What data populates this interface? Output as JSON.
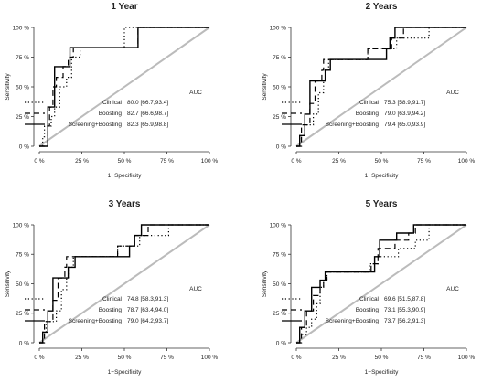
{
  "chart_data": [
    {
      "type": "line",
      "title": "1 Year",
      "xlabel": "1−Specificity",
      "ylabel": "Sensitivity",
      "xlim": [
        0,
        100
      ],
      "ylim": [
        0,
        100
      ],
      "x_ticks": [
        "0 %",
        "25 %",
        "50 %",
        "75 %",
        "100 %"
      ],
      "y_ticks": [
        "0 %",
        "25 %",
        "50 %",
        "75 %",
        "100 %"
      ],
      "legend_position": "bottom-right",
      "auc_header": "AUC",
      "reference_line": {
        "from": [
          0,
          0
        ],
        "to": [
          100,
          100
        ],
        "color": "#bbbbbb"
      },
      "series": [
        {
          "name": "Clinical",
          "auc": "80.0 [66.7,93.4]",
          "style": "dotted",
          "points": [
            [
              0,
              0
            ],
            [
              2,
              0
            ],
            [
              2,
              8
            ],
            [
              3,
              8
            ],
            [
              3,
              17
            ],
            [
              7,
              17
            ],
            [
              7,
              25
            ],
            [
              9,
              25
            ],
            [
              9,
              33
            ],
            [
              12,
              33
            ],
            [
              12,
              50
            ],
            [
              16,
              50
            ],
            [
              16,
              58
            ],
            [
              19,
              58
            ],
            [
              19,
              75
            ],
            [
              24,
              75
            ],
            [
              24,
              83
            ],
            [
              50,
              83
            ],
            [
              50,
              100
            ],
            [
              100,
              100
            ]
          ]
        },
        {
          "name": "Boosting",
          "auc": "82.7 [66.6,98.7]",
          "style": "dashed",
          "points": [
            [
              0,
              0
            ],
            [
              5,
              0
            ],
            [
              5,
              17
            ],
            [
              6,
              17
            ],
            [
              6,
              33
            ],
            [
              8,
              33
            ],
            [
              8,
              50
            ],
            [
              10,
              50
            ],
            [
              10,
              58
            ],
            [
              14,
              58
            ],
            [
              14,
              67
            ],
            [
              17,
              67
            ],
            [
              17,
              75
            ],
            [
              20,
              75
            ],
            [
              20,
              83
            ],
            [
              58,
              83
            ],
            [
              58,
              100
            ],
            [
              100,
              100
            ]
          ]
        },
        {
          "name": "Screening+Boosting",
          "auc": "82.3 [65.9,98.8]",
          "style": "solid",
          "points": [
            [
              0,
              0
            ],
            [
              5,
              0
            ],
            [
              5,
              33
            ],
            [
              9,
              33
            ],
            [
              9,
              67
            ],
            [
              18,
              67
            ],
            [
              18,
              83
            ],
            [
              58,
              83
            ],
            [
              58,
              100
            ],
            [
              100,
              100
            ]
          ]
        }
      ]
    },
    {
      "type": "line",
      "title": "2 Years",
      "xlabel": "1−Specificity",
      "ylabel": "Sensitivity",
      "xlim": [
        0,
        100
      ],
      "ylim": [
        0,
        100
      ],
      "x_ticks": [
        "0 %",
        "25 %",
        "50 %",
        "75 %",
        "100 %"
      ],
      "y_ticks": [
        "0 %",
        "25 %",
        "50 %",
        "75 %",
        "100 %"
      ],
      "legend_position": "bottom-right",
      "auc_header": "AUC",
      "reference_line": {
        "from": [
          0,
          0
        ],
        "to": [
          100,
          100
        ],
        "color": "#bbbbbb"
      },
      "series": [
        {
          "name": "Clinical",
          "auc": "75.3 [58.9,91.7]",
          "style": "dotted",
          "points": [
            [
              0,
              0
            ],
            [
              2,
              0
            ],
            [
              2,
              9
            ],
            [
              5,
              9
            ],
            [
              5,
              18
            ],
            [
              10,
              18
            ],
            [
              10,
              27
            ],
            [
              13,
              27
            ],
            [
              13,
              45
            ],
            [
              16,
              45
            ],
            [
              16,
              55
            ],
            [
              17,
              55
            ],
            [
              17,
              64
            ],
            [
              19,
              64
            ],
            [
              19,
              73
            ],
            [
              42,
              73
            ],
            [
              42,
              82
            ],
            [
              59,
              82
            ],
            [
              59,
              91
            ],
            [
              78,
              91
            ],
            [
              78,
              100
            ],
            [
              100,
              100
            ]
          ]
        },
        {
          "name": "Boosting",
          "auc": "79.0 [63.9,94.2]",
          "style": "dashed",
          "points": [
            [
              0,
              0
            ],
            [
              3,
              0
            ],
            [
              3,
              18
            ],
            [
              8,
              18
            ],
            [
              8,
              36
            ],
            [
              11,
              36
            ],
            [
              11,
              55
            ],
            [
              15,
              55
            ],
            [
              15,
              64
            ],
            [
              16,
              64
            ],
            [
              16,
              73
            ],
            [
              42,
              73
            ],
            [
              42,
              82
            ],
            [
              56,
              82
            ],
            [
              56,
              91
            ],
            [
              63,
              91
            ],
            [
              63,
              100
            ],
            [
              100,
              100
            ]
          ]
        },
        {
          "name": "Screening+Boosting",
          "auc": "79.4 [65.0,93.9]",
          "style": "solid",
          "points": [
            [
              0,
              0
            ],
            [
              2,
              0
            ],
            [
              2,
              9
            ],
            [
              5,
              9
            ],
            [
              5,
              27
            ],
            [
              8,
              27
            ],
            [
              8,
              55
            ],
            [
              17,
              55
            ],
            [
              17,
              64
            ],
            [
              20,
              64
            ],
            [
              20,
              73
            ],
            [
              53,
              73
            ],
            [
              53,
              82
            ],
            [
              55,
              82
            ],
            [
              55,
              91
            ],
            [
              58,
              91
            ],
            [
              58,
              100
            ],
            [
              100,
              100
            ]
          ]
        }
      ]
    },
    {
      "type": "line",
      "title": "3 Years",
      "xlabel": "1−Specificity",
      "ylabel": "Sensitivity",
      "xlim": [
        0,
        100
      ],
      "ylim": [
        0,
        100
      ],
      "x_ticks": [
        "0 %",
        "25 %",
        "50 %",
        "75 %",
        "100 %"
      ],
      "y_ticks": [
        "0 %",
        "25 %",
        "50 %",
        "75 %",
        "100 %"
      ],
      "legend_position": "bottom-right",
      "auc_header": "AUC",
      "reference_line": {
        "from": [
          0,
          0
        ],
        "to": [
          100,
          100
        ],
        "color": "#bbbbbb"
      },
      "series": [
        {
          "name": "Clinical",
          "auc": "74.8 [58.3,91.3]",
          "style": "dotted",
          "points": [
            [
              0,
              0
            ],
            [
              2,
              0
            ],
            [
              2,
              9
            ],
            [
              4,
              9
            ],
            [
              4,
              18
            ],
            [
              10,
              18
            ],
            [
              10,
              27
            ],
            [
              13,
              27
            ],
            [
              13,
              45
            ],
            [
              16,
              45
            ],
            [
              16,
              55
            ],
            [
              17,
              55
            ],
            [
              17,
              64
            ],
            [
              20,
              64
            ],
            [
              20,
              73
            ],
            [
              46,
              73
            ],
            [
              46,
              82
            ],
            [
              59,
              82
            ],
            [
              59,
              91
            ],
            [
              76,
              91
            ],
            [
              76,
              100
            ],
            [
              100,
              100
            ]
          ]
        },
        {
          "name": "Boosting",
          "auc": "78.7 [63.4,94.0]",
          "style": "dashed",
          "points": [
            [
              0,
              0
            ],
            [
              3,
              0
            ],
            [
              3,
              18
            ],
            [
              8,
              18
            ],
            [
              8,
              36
            ],
            [
              11,
              36
            ],
            [
              11,
              55
            ],
            [
              15,
              55
            ],
            [
              15,
              64
            ],
            [
              16,
              64
            ],
            [
              16,
              73
            ],
            [
              46,
              73
            ],
            [
              46,
              82
            ],
            [
              56,
              82
            ],
            [
              56,
              91
            ],
            [
              64,
              91
            ],
            [
              64,
              100
            ],
            [
              100,
              100
            ]
          ]
        },
        {
          "name": "Screening+Boosting",
          "auc": "79.0 [64.2,93.7]",
          "style": "solid",
          "points": [
            [
              0,
              0
            ],
            [
              2,
              0
            ],
            [
              2,
              9
            ],
            [
              5,
              9
            ],
            [
              5,
              27
            ],
            [
              8,
              27
            ],
            [
              8,
              55
            ],
            [
              17,
              55
            ],
            [
              17,
              64
            ],
            [
              21,
              64
            ],
            [
              21,
              73
            ],
            [
              53,
              73
            ],
            [
              53,
              82
            ],
            [
              56,
              82
            ],
            [
              56,
              91
            ],
            [
              60,
              91
            ],
            [
              60,
              100
            ],
            [
              100,
              100
            ]
          ]
        }
      ]
    },
    {
      "type": "line",
      "title": "5 Years",
      "xlabel": "1−Specificity",
      "ylabel": "Sensitivity",
      "xlim": [
        0,
        100
      ],
      "ylim": [
        0,
        100
      ],
      "x_ticks": [
        "0 %",
        "25 %",
        "50 %",
        "75 %",
        "100 %"
      ],
      "y_ticks": [
        "0 %",
        "25 %",
        "50 %",
        "75 %",
        "100 %"
      ],
      "legend_position": "bottom-right",
      "auc_header": "AUC",
      "reference_line": {
        "from": [
          0,
          0
        ],
        "to": [
          100,
          100
        ],
        "color": "#bbbbbb"
      },
      "series": [
        {
          "name": "Clinical",
          "auc": "69.6 [51.5,87.8]",
          "style": "dotted",
          "points": [
            [
              0,
              0
            ],
            [
              2,
              0
            ],
            [
              2,
              7
            ],
            [
              6,
              7
            ],
            [
              6,
              13
            ],
            [
              9,
              13
            ],
            [
              9,
              20
            ],
            [
              12,
              20
            ],
            [
              12,
              33
            ],
            [
              14,
              33
            ],
            [
              14,
              47
            ],
            [
              16,
              47
            ],
            [
              16,
              53
            ],
            [
              18,
              53
            ],
            [
              18,
              60
            ],
            [
              43,
              60
            ],
            [
              43,
              67
            ],
            [
              48,
              67
            ],
            [
              48,
              73
            ],
            [
              60,
              73
            ],
            [
              60,
              80
            ],
            [
              70,
              80
            ],
            [
              70,
              87
            ],
            [
              78,
              87
            ],
            [
              78,
              100
            ],
            [
              100,
              100
            ]
          ]
        },
        {
          "name": "Boosting",
          "auc": "73.1 [55.3,90.9]",
          "style": "dashed",
          "points": [
            [
              0,
              0
            ],
            [
              3,
              0
            ],
            [
              3,
              13
            ],
            [
              6,
              13
            ],
            [
              6,
              27
            ],
            [
              10,
              27
            ],
            [
              10,
              40
            ],
            [
              14,
              40
            ],
            [
              14,
              47
            ],
            [
              16,
              47
            ],
            [
              16,
              53
            ],
            [
              18,
              53
            ],
            [
              18,
              60
            ],
            [
              44,
              60
            ],
            [
              44,
              67
            ],
            [
              48,
              67
            ],
            [
              48,
              80
            ],
            [
              58,
              80
            ],
            [
              58,
              87
            ],
            [
              66,
              87
            ],
            [
              66,
              93
            ],
            [
              70,
              93
            ],
            [
              70,
              100
            ],
            [
              100,
              100
            ]
          ]
        },
        {
          "name": "Screening+Boosting",
          "auc": "73.7 [56.2,91.3]",
          "style": "solid",
          "points": [
            [
              0,
              0
            ],
            [
              2,
              0
            ],
            [
              2,
              13
            ],
            [
              5,
              13
            ],
            [
              5,
              27
            ],
            [
              9,
              27
            ],
            [
              9,
              47
            ],
            [
              14,
              47
            ],
            [
              14,
              53
            ],
            [
              17,
              53
            ],
            [
              17,
              60
            ],
            [
              46,
              60
            ],
            [
              46,
              73
            ],
            [
              49,
              73
            ],
            [
              49,
              87
            ],
            [
              59,
              87
            ],
            [
              59,
              93
            ],
            [
              69,
              93
            ],
            [
              69,
              100
            ],
            [
              100,
              100
            ]
          ]
        }
      ]
    }
  ]
}
